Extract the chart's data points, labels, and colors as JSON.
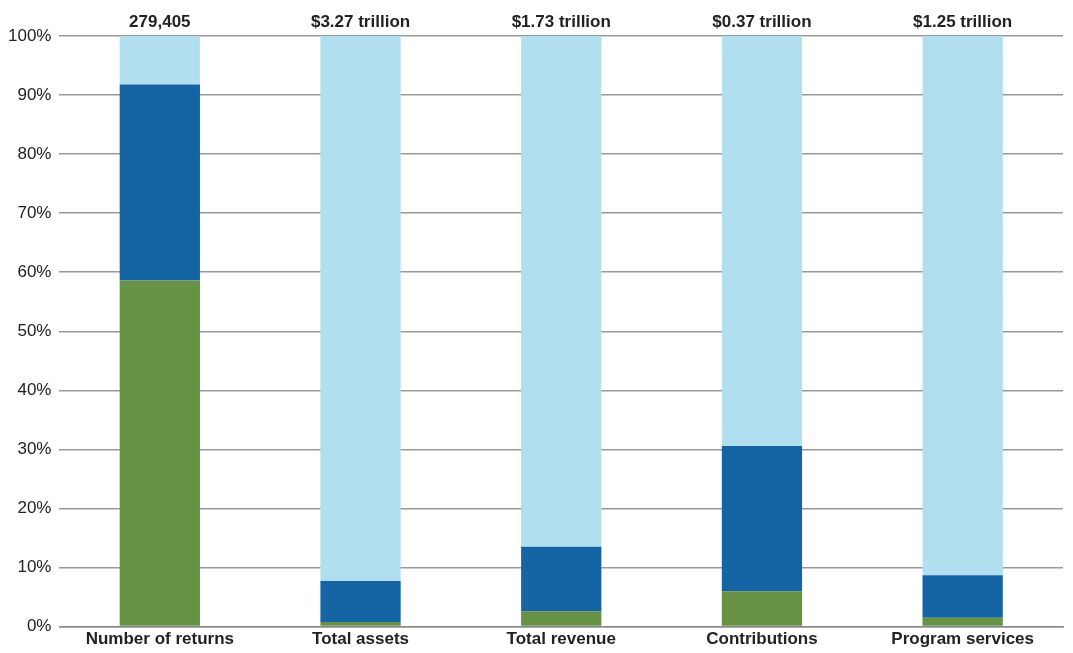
{
  "chart_data": {
    "type": "bar",
    "stacked": true,
    "categories": [
      "Number of returns",
      "Total assets",
      "Total revenue",
      "Contributions",
      "Program services"
    ],
    "series": [
      {
        "color": "#679145",
        "values": [
          58.6,
          0.8,
          2.6,
          6.0,
          1.5
        ]
      },
      {
        "color": "#1565a5",
        "values": [
          33.2,
          6.9,
          10.9,
          24.6,
          7.2
        ]
      },
      {
        "color": "#b2dff0",
        "values": [
          8.2,
          92.3,
          86.5,
          69.4,
          91.3
        ]
      }
    ],
    "ylim": [
      0,
      100
    ],
    "yticks": [
      {
        "value": 0,
        "label": "0%"
      },
      {
        "value": 10,
        "label": "10%"
      },
      {
        "value": 20,
        "label": "20%"
      },
      {
        "value": 30,
        "label": "30%"
      },
      {
        "value": 40,
        "label": "40%"
      },
      {
        "value": 50,
        "label": "50%"
      },
      {
        "value": 60,
        "label": "60%"
      },
      {
        "value": 70,
        "label": "70%"
      },
      {
        "value": 80,
        "label": "80%"
      },
      {
        "value": 90,
        "label": "90%"
      },
      {
        "value": 100,
        "label": "100%"
      }
    ],
    "annotations": [
      {
        "text": "279,405",
        "x": "Number of returns",
        "y": 100
      },
      {
        "text": "$3.27 trillion",
        "x": "Total assets",
        "y": 100
      },
      {
        "text": "$1.73 trillion",
        "x": "Total revenue",
        "y": 100
      },
      {
        "text": "$0.37 trillion",
        "x": "Contributions",
        "y": 100
      },
      {
        "text": "$1.25 trillion",
        "x": "Program services",
        "y": 100
      }
    ],
    "grid": "y",
    "legend": false
  }
}
